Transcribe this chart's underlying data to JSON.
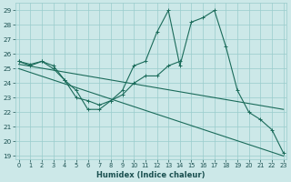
{
  "xlabel": "Humidex (Indice chaleur)",
  "bg_color": "#cce8e8",
  "grid_color": "#99cccc",
  "line_color": "#1a6b5a",
  "xlim": [
    -0.3,
    23.3
  ],
  "ylim": [
    18.8,
    29.5
  ],
  "yticks": [
    19,
    20,
    21,
    22,
    23,
    24,
    25,
    26,
    27,
    28,
    29
  ],
  "xticks": [
    0,
    1,
    2,
    3,
    4,
    5,
    6,
    7,
    8,
    9,
    10,
    11,
    12,
    13,
    14,
    15,
    16,
    17,
    18,
    19,
    20,
    21,
    22,
    23
  ],
  "series_volatile": {
    "x": [
      0,
      1,
      2,
      3,
      4,
      5,
      6,
      7,
      8,
      9,
      10,
      11,
      12,
      13,
      14,
      15,
      16,
      17,
      18,
      19,
      20,
      21,
      22,
      23
    ],
    "y": [
      25.5,
      25.3,
      25.5,
      25.2,
      24.2,
      23.0,
      22.8,
      22.5,
      22.8,
      23.5,
      25.2,
      25.5,
      27.5,
      29.0,
      25.2,
      28.2,
      28.5,
      29.0,
      26.5,
      23.5,
      22.0,
      21.5,
      20.8,
      19.2
    ]
  },
  "series_zigzag": {
    "x": [
      0,
      1,
      2,
      3,
      4,
      5,
      6,
      7,
      8,
      9,
      10,
      11,
      12,
      13,
      14
    ],
    "y": [
      25.5,
      25.2,
      25.5,
      25.0,
      24.2,
      23.5,
      22.2,
      22.2,
      22.8,
      23.2,
      24.0,
      24.5,
      24.5,
      25.2,
      25.5
    ]
  },
  "series_diag_upper": {
    "x": [
      0,
      23
    ],
    "y": [
      25.3,
      22.2
    ]
  },
  "series_diag_lower": {
    "x": [
      0,
      23
    ],
    "y": [
      25.0,
      19.0
    ]
  }
}
